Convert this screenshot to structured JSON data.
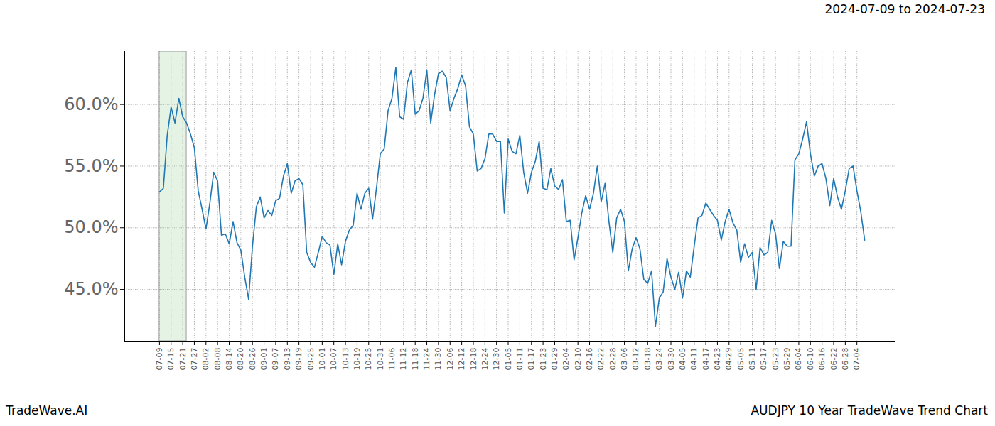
{
  "chart_data": {
    "type": "line",
    "title": "AUDJPY 10 Year TradeWave Trend Chart",
    "subtitle": "2024-07-09 to 2024-07-23",
    "source": "TradeWave.AI",
    "highlight": [
      "2024-07-09",
      "2024-07-23"
    ],
    "color": "#1f77b4",
    "grid": true,
    "categories": [
      "07-09",
      null,
      null,
      "07-15",
      null,
      null,
      "07-21",
      null,
      null,
      "07-27",
      null,
      null,
      "08-02",
      null,
      null,
      "08-08",
      null,
      null,
      "08-14",
      null,
      null,
      "08-20",
      null,
      null,
      "08-26",
      null,
      null,
      "09-01",
      null,
      null,
      "09-07",
      null,
      null,
      "09-13",
      null,
      null,
      "09-19",
      null,
      null,
      "09-25",
      null,
      null,
      "10-01",
      null,
      null,
      "10-07",
      null,
      null,
      "10-13",
      null,
      null,
      "10-19",
      null,
      null,
      "10-25",
      null,
      null,
      "10-31",
      null,
      null,
      "11-06",
      null,
      null,
      "11-12",
      null,
      null,
      "11-18",
      null,
      null,
      "11-24",
      null,
      null,
      "11-30",
      null,
      null,
      "12-06",
      null,
      null,
      "12-12",
      null,
      null,
      "12-18",
      null,
      null,
      "12-24",
      null,
      null,
      "12-30",
      null,
      null,
      "01-05",
      null,
      null,
      "01-11",
      null,
      null,
      "01-17",
      null,
      null,
      "01-23",
      null,
      null,
      "01-29",
      null,
      null,
      "02-04",
      null,
      null,
      "02-10",
      null,
      null,
      "02-16",
      null,
      null,
      "02-22",
      null,
      null,
      "02-28",
      null,
      null,
      "03-06",
      null,
      null,
      "03-12",
      null,
      null,
      "03-18",
      null,
      null,
      "03-24",
      null,
      null,
      "03-30",
      null,
      null,
      "04-05",
      null,
      null,
      "04-11",
      null,
      null,
      "04-17",
      null,
      null,
      "04-23",
      null,
      null,
      "04-29",
      null,
      null,
      "05-05",
      null,
      null,
      "05-11",
      null,
      null,
      "05-17",
      null,
      null,
      "05-23",
      null,
      null,
      "05-29",
      null,
      null,
      "06-04",
      null,
      null,
      "06-10",
      null,
      null,
      "06-16",
      null,
      null,
      "06-22",
      null,
      null,
      "06-28",
      null,
      null,
      "07-04",
      null,
      null
    ],
    "values": [
      52.9,
      53.2,
      57.5,
      59.8,
      58.5,
      60.5,
      59.0,
      58.5,
      57.6,
      56.5,
      53.0,
      51.5,
      49.9,
      52.0,
      54.5,
      53.8,
      49.4,
      49.5,
      48.7,
      50.5,
      48.8,
      48.2,
      46.0,
      44.2,
      48.5,
      51.7,
      52.5,
      50.8,
      51.4,
      51.0,
      52.2,
      52.4,
      54.2,
      55.2,
      52.8,
      53.8,
      54.0,
      53.5,
      48.0,
      47.2,
      46.8,
      48.0,
      49.3,
      48.8,
      48.6,
      46.2,
      48.7,
      47.0,
      48.9,
      49.8,
      50.2,
      52.8,
      51.5,
      52.8,
      53.2,
      50.7,
      53.2,
      56.0,
      56.4,
      59.5,
      60.5,
      63.0,
      59.0,
      58.8,
      61.8,
      62.8,
      59.2,
      59.5,
      60.5,
      62.8,
      58.5,
      60.8,
      62.5,
      62.7,
      62.2,
      59.5,
      60.5,
      61.3,
      62.4,
      61.5,
      58.2,
      57.6,
      54.6,
      54.8,
      55.6,
      57.6,
      57.6,
      57.0,
      57.0,
      51.2,
      57.2,
      56.2,
      56.0,
      57.5,
      54.5,
      52.8,
      54.5,
      55.4,
      57.0,
      53.2,
      53.1,
      54.8,
      53.4,
      53.1,
      53.9,
      50.5,
      50.6,
      47.4,
      49.2,
      51.2,
      52.6,
      51.5,
      52.8,
      55.0,
      52.1,
      53.6,
      50.5,
      48.0,
      50.8,
      51.5,
      50.5,
      46.5,
      48.3,
      49.2,
      48.3,
      45.8,
      45.5,
      46.5,
      42.0,
      44.3,
      44.8,
      47.5,
      46.0,
      45.0,
      46.4,
      44.3,
      46.5,
      46.0,
      48.5,
      50.8,
      51.0,
      52.0,
      51.5,
      51.0,
      50.6,
      49.0,
      50.5,
      51.5,
      50.4,
      49.8,
      47.2,
      48.7,
      47.6,
      48.0,
      45.0,
      48.4,
      47.8,
      48.0,
      50.6,
      49.5,
      46.7,
      48.9,
      48.5,
      48.5,
      55.5,
      56.0,
      57.2,
      58.6,
      56.0,
      54.2,
      55.0,
      55.2,
      54.0,
      51.8,
      54.0,
      52.5,
      51.5,
      53.0,
      54.8,
      55.0,
      53.0,
      51.3,
      49.0
    ],
    "ylim": [
      40.8,
      64.3
    ],
    "yticks": [
      {
        "value": 45,
        "label": "45.0%"
      },
      {
        "value": 50,
        "label": "50.0%"
      },
      {
        "value": 55,
        "label": "55.0%"
      },
      {
        "value": 60,
        "label": "60.0%"
      }
    ]
  }
}
